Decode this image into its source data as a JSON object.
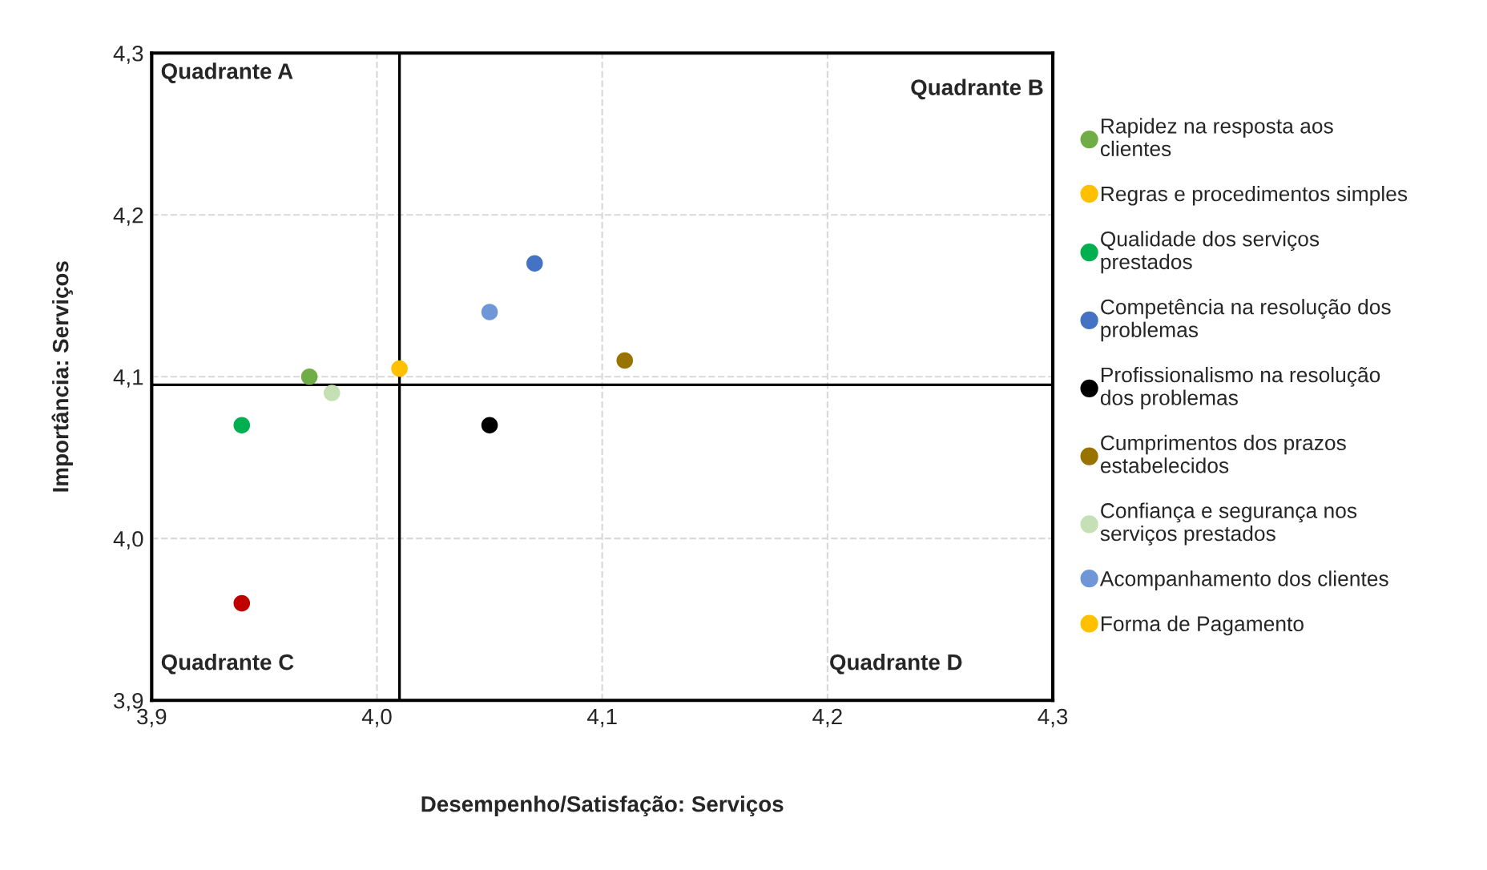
{
  "chart_data": {
    "type": "scatter",
    "xlabel": "Desempenho/Satisfação: Serviços",
    "ylabel": "Importância: Serviços",
    "xlim": [
      3.9,
      4.3
    ],
    "xticks": [
      {
        "value": 3.9,
        "label": "3,9"
      },
      {
        "value": 4.0,
        "label": "4,0"
      },
      {
        "value": 4.1,
        "label": "4,1"
      },
      {
        "value": 4.2,
        "label": "4,2"
      },
      {
        "value": 4.3,
        "label": "4,3"
      }
    ],
    "ylim": [
      3.9,
      4.3
    ],
    "yticks": [
      {
        "value": 3.9,
        "label": "3,9"
      },
      {
        "value": 4.0,
        "label": "4,0"
      },
      {
        "value": 4.1,
        "label": "4,1"
      },
      {
        "value": 4.2,
        "label": "4,2"
      },
      {
        "value": 4.3,
        "label": "4,3"
      }
    ],
    "grid": true,
    "legend": "right",
    "marker": "circle",
    "ref_lines": [
      {
        "axis": "x",
        "value": 4.01,
        "color": "#000000"
      },
      {
        "axis": "y",
        "value": 4.095,
        "color": "#000000"
      }
    ],
    "annotations": [
      "Quadrante A",
      "Quadrante B",
      "Quadrante C",
      "Quadrante D"
    ],
    "series": [
      {
        "name": "Rapidez na resposta aos clientes",
        "color": "#70ad47",
        "x": [
          3.97
        ],
        "values": [
          4.1
        ]
      },
      {
        "name": "Regras e procedimentos simples",
        "color": "#ffc000",
        "x": [
          4.01
        ],
        "values": [
          4.105
        ]
      },
      {
        "name": "Qualidade dos serviços prestados",
        "color": "#00b050",
        "x": [
          3.94
        ],
        "values": [
          4.07
        ]
      },
      {
        "name": "Competência na resolução dos problemas",
        "color": "#4472c4",
        "x": [
          4.07
        ],
        "values": [
          4.17
        ]
      },
      {
        "name": "Profissionalismo na resolução dos problemas",
        "color": "#000000",
        "x": [
          4.05
        ],
        "values": [
          4.07
        ]
      },
      {
        "name": "Cumprimentos dos prazos estabelecidos",
        "color": "#997300",
        "x": [
          4.11
        ],
        "values": [
          4.11
        ]
      },
      {
        "name": "Confiança e segurança nos serviços prestados",
        "color": "#c5e0b4",
        "x": [
          3.98
        ],
        "values": [
          4.09
        ]
      },
      {
        "name": "Acompanhamento dos clientes",
        "color": "#6f97d8",
        "x": [
          4.05
        ],
        "values": [
          4.14
        ]
      },
      {
        "name": "Forma de Pagamento",
        "color": "#ffc000",
        "x": [
          null
        ],
        "values": [
          null
        ]
      },
      {
        "color": "#c00000",
        "x": [
          3.94
        ],
        "values": [
          3.96
        ]
      }
    ]
  }
}
